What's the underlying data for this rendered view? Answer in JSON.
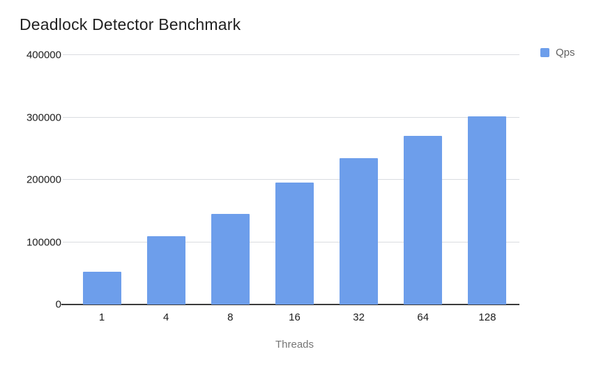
{
  "chart_data": {
    "type": "bar",
    "title": "Deadlock Detector Benchmark",
    "categories": [
      "1",
      "4",
      "8",
      "16",
      "32",
      "64",
      "128"
    ],
    "series": [
      {
        "name": "Qps",
        "color": "#6d9eeb",
        "values": [
          52000,
          110000,
          145000,
          195000,
          235000,
          270000,
          302000
        ]
      }
    ],
    "xlabel": "Threads",
    "ylabel": "",
    "ylim": [
      0,
      400000
    ],
    "yticks": [
      0,
      100000,
      200000,
      300000,
      400000
    ],
    "ytick_labels": [
      "0",
      "100000",
      "200000",
      "300000",
      "400000"
    ],
    "grid": true,
    "gridline_color": "#dadce0",
    "axis_line_color": "#3a3a3a",
    "legend_position": "top-right"
  }
}
